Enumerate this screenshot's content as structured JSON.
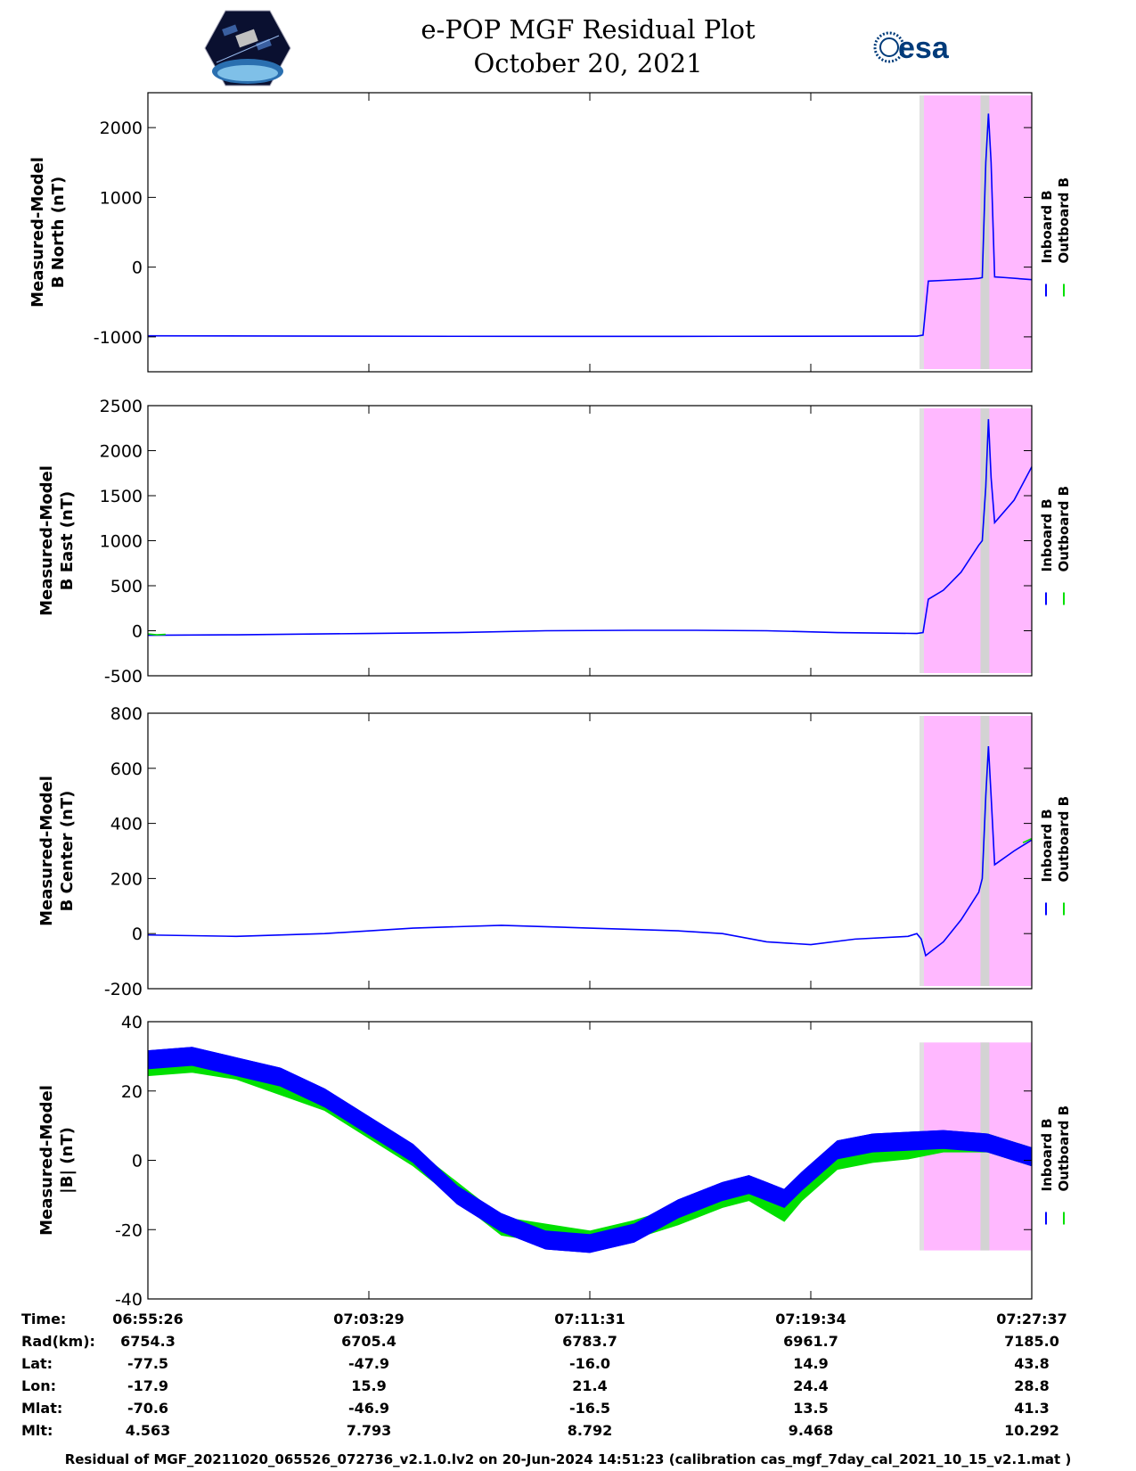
{
  "title_line1": "e-POP MGF Residual Plot",
  "title_line2": "October 20, 2021",
  "logos": {
    "left": "cassiope-satellite-logo",
    "right": "esa-logo",
    "right_text": "esa"
  },
  "colors": {
    "inboard": "#0000ff",
    "outboard": "#00e000",
    "shade_magenta": "#ffb8ff",
    "shade_gray": "#d3d3d3"
  },
  "chart_data": [
    {
      "type": "line",
      "ylabel": [
        "Measured-Model",
        "B North (nT)"
      ],
      "yticks": [
        -1000,
        0,
        1000,
        2000
      ],
      "ylim": [
        -1500,
        2500
      ],
      "legend": [
        "Inboard B",
        "Outboard B"
      ],
      "series": [
        {
          "name": "Inboard B",
          "points": [
            [
              0,
              -985
            ],
            [
              0.15,
              -988
            ],
            [
              0.35,
              -992
            ],
            [
              0.5,
              -993
            ],
            [
              0.65,
              -992
            ],
            [
              0.87,
              -990
            ],
            [
              0.877,
              -975
            ],
            [
              0.883,
              -200
            ],
            [
              0.9,
              -190
            ],
            [
              0.93,
              -170
            ],
            [
              0.94,
              -160
            ],
            [
              0.944,
              -150
            ],
            [
              0.948,
              1500
            ],
            [
              0.951,
              2200
            ],
            [
              0.954,
              1500
            ],
            [
              0.958,
              -140
            ],
            [
              0.97,
              -150
            ],
            [
              1.0,
              -180
            ]
          ]
        }
      ]
    },
    {
      "type": "line",
      "ylabel": [
        "Measured-Model",
        "B East (nT)"
      ],
      "yticks": [
        -500,
        0,
        500,
        1000,
        1500,
        2000,
        2500
      ],
      "ylim": [
        -500,
        2500
      ],
      "legend": [
        "Inboard B",
        "Outboard B"
      ],
      "series": [
        {
          "name": "Inboard B",
          "points": [
            [
              0,
              -50
            ],
            [
              0.1,
              -45
            ],
            [
              0.25,
              -30
            ],
            [
              0.35,
              -20
            ],
            [
              0.45,
              0
            ],
            [
              0.55,
              5
            ],
            [
              0.62,
              5
            ],
            [
              0.7,
              0
            ],
            [
              0.78,
              -20
            ],
            [
              0.87,
              -30
            ],
            [
              0.877,
              -20
            ],
            [
              0.883,
              350
            ],
            [
              0.9,
              450
            ],
            [
              0.92,
              650
            ],
            [
              0.94,
              950
            ],
            [
              0.944,
              1000
            ],
            [
              0.948,
              1600
            ],
            [
              0.951,
              2350
            ],
            [
              0.954,
              1700
            ],
            [
              0.958,
              1200
            ],
            [
              0.98,
              1450
            ],
            [
              1.0,
              1820
            ]
          ]
        },
        {
          "name": "Outboard B",
          "points": [
            [
              0,
              -35
            ],
            [
              0.01,
              -45
            ],
            [
              0.02,
              -40
            ]
          ]
        }
      ]
    },
    {
      "type": "line",
      "ylabel": [
        "Measured-Model",
        "B Center (nT)"
      ],
      "yticks": [
        -200,
        0,
        200,
        400,
        600,
        800
      ],
      "ylim": [
        -200,
        800
      ],
      "legend": [
        "Inboard B",
        "Outboard B"
      ],
      "series": [
        {
          "name": "Inboard B",
          "points": [
            [
              0,
              -5
            ],
            [
              0.1,
              -10
            ],
            [
              0.2,
              0
            ],
            [
              0.3,
              20
            ],
            [
              0.4,
              30
            ],
            [
              0.5,
              20
            ],
            [
              0.6,
              10
            ],
            [
              0.65,
              0
            ],
            [
              0.7,
              -30
            ],
            [
              0.75,
              -40
            ],
            [
              0.8,
              -20
            ],
            [
              0.86,
              -10
            ],
            [
              0.87,
              0
            ],
            [
              0.875,
              -20
            ],
            [
              0.88,
              -80
            ],
            [
              0.9,
              -30
            ],
            [
              0.92,
              50
            ],
            [
              0.94,
              150
            ],
            [
              0.944,
              200
            ],
            [
              0.948,
              500
            ],
            [
              0.951,
              680
            ],
            [
              0.954,
              500
            ],
            [
              0.958,
              250
            ],
            [
              0.98,
              300
            ],
            [
              1.0,
              340
            ]
          ]
        },
        {
          "name": "Outboard B",
          "points": [
            [
              0.99,
              330
            ],
            [
              1.0,
              345
            ]
          ]
        }
      ]
    },
    {
      "type": "area",
      "ylabel": [
        "Measured-Model",
        "|B| (nT)"
      ],
      "yticks": [
        -40,
        -20,
        0,
        20,
        40
      ],
      "ylim": [
        -40,
        40
      ],
      "legend": [
        "Inboard B",
        "Outboard B"
      ],
      "series": [
        {
          "name": "Inboard B",
          "points": [
            [
              0,
              29
            ],
            [
              0.05,
              30
            ],
            [
              0.1,
              27
            ],
            [
              0.15,
              24
            ],
            [
              0.2,
              18
            ],
            [
              0.25,
              10
            ],
            [
              0.3,
              2
            ],
            [
              0.35,
              -10
            ],
            [
              0.4,
              -18
            ],
            [
              0.45,
              -23
            ],
            [
              0.5,
              -24
            ],
            [
              0.55,
              -21
            ],
            [
              0.6,
              -14
            ],
            [
              0.65,
              -9
            ],
            [
              0.68,
              -7
            ],
            [
              0.7,
              -9
            ],
            [
              0.72,
              -11
            ],
            [
              0.74,
              -6
            ],
            [
              0.78,
              3
            ],
            [
              0.82,
              5
            ],
            [
              0.86,
              5.5
            ],
            [
              0.9,
              6
            ],
            [
              0.95,
              5
            ],
            [
              1.0,
              1
            ]
          ]
        },
        {
          "name": "Outboard B",
          "points": [
            [
              0,
              27
            ],
            [
              0.05,
              28
            ],
            [
              0.1,
              26
            ],
            [
              0.2,
              17
            ],
            [
              0.3,
              1
            ],
            [
              0.4,
              -19
            ],
            [
              0.5,
              -23
            ],
            [
              0.55,
              -20
            ],
            [
              0.6,
              -16
            ],
            [
              0.65,
              -11
            ],
            [
              0.68,
              -9
            ],
            [
              0.7,
              -12
            ],
            [
              0.72,
              -15
            ],
            [
              0.74,
              -9
            ],
            [
              0.78,
              0
            ],
            [
              0.82,
              2
            ],
            [
              0.86,
              3
            ],
            [
              0.9,
              5
            ],
            [
              0.95,
              5
            ],
            [
              1.0,
              1
            ]
          ]
        }
      ],
      "band_halfwidth": 2.6
    }
  ],
  "shading": {
    "gray_lines": [
      0.873,
      0.878
    ],
    "magenta_range": [
      0.878,
      1.0
    ],
    "gray_band": [
      0.942,
      0.952
    ]
  },
  "time_table": {
    "labels": [
      "Time:",
      "Rad(km):",
      "Lat:",
      "Lon:",
      "Mlat:",
      "Mlt:"
    ],
    "columns": [
      [
        "06:55:26",
        "6754.3",
        "-77.5",
        "-17.9",
        "-70.6",
        "4.563"
      ],
      [
        "07:03:29",
        "6705.4",
        "-47.9",
        "15.9",
        "-46.9",
        "7.793"
      ],
      [
        "07:11:31",
        "6783.7",
        "-16.0",
        "21.4",
        "-16.5",
        "8.792"
      ],
      [
        "07:19:34",
        "6961.7",
        "14.9",
        "24.4",
        "13.5",
        "9.468"
      ],
      [
        "07:27:37",
        "7185.0",
        "43.8",
        "28.8",
        "41.3",
        "10.292"
      ]
    ]
  },
  "footer": "Residual of MGF_20211020_065526_072736_v2.1.0.lv2 on 20-Jun-2024 14:51:23 (calibration cas_mgf_7day_cal_2021_10_15_v2.1.mat )"
}
